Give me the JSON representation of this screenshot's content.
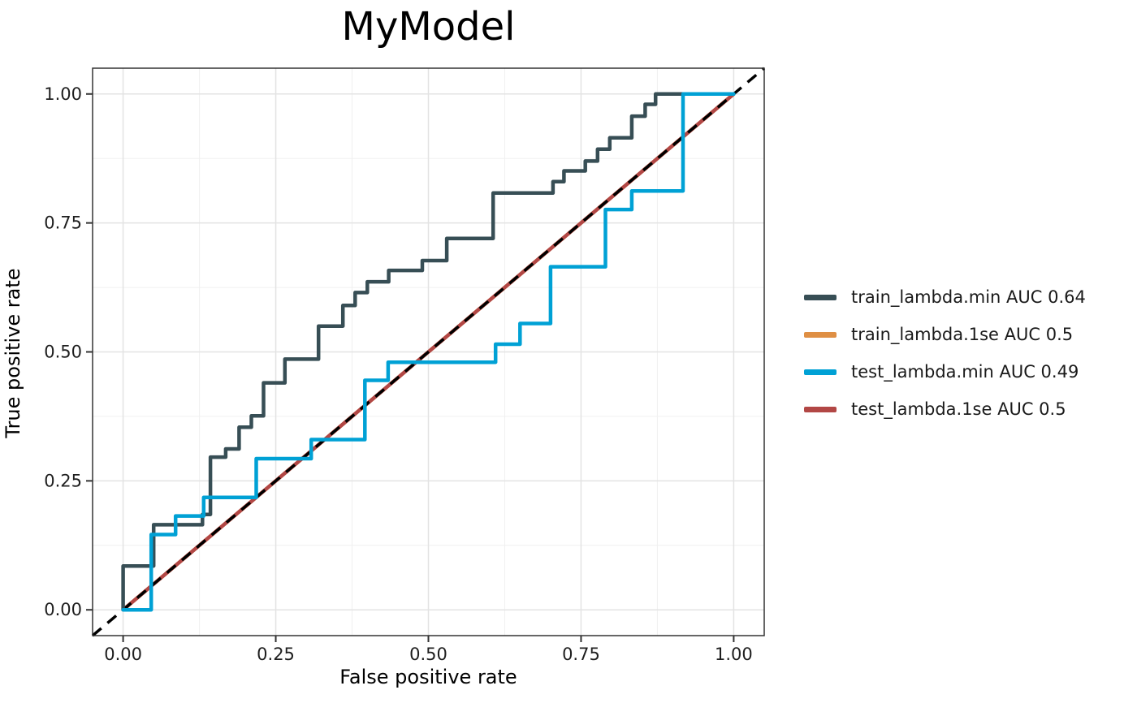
{
  "chart_data": {
    "type": "line",
    "subtype": "roc-step-curves",
    "title": "MyModel",
    "xlabel": "False positive rate",
    "ylabel": "True positive rate",
    "xlim": [
      -0.05,
      1.05
    ],
    "ylim": [
      -0.05,
      1.05
    ],
    "grid": true,
    "legend_position": "right",
    "x_ticks": {
      "values": [
        0,
        0.25,
        0.5,
        0.75,
        1
      ],
      "labels": [
        "0.00",
        "0.25",
        "0.50",
        "0.75",
        "1.00"
      ]
    },
    "y_ticks": {
      "values": [
        0,
        0.25,
        0.5,
        0.75,
        1
      ],
      "labels": [
        "0.00",
        "0.25",
        "0.50",
        "0.75",
        "1.00"
      ]
    },
    "minor_ticks": [
      0.125,
      0.375,
      0.625,
      0.875
    ],
    "reference_line": {
      "meaning": "chance diagonal",
      "style": "dashed",
      "color": "#000000",
      "from": [
        -0.05,
        -0.05
      ],
      "to": [
        1.05,
        1.05
      ]
    },
    "series": [
      {
        "name": "train_lambda.min AUC 0.64",
        "auc": 0.64,
        "color": "#374E55",
        "points": [
          [
            0.0,
            0.0
          ],
          [
            0.0,
            0.085
          ],
          [
            0.05,
            0.085
          ],
          [
            0.05,
            0.165
          ],
          [
            0.13,
            0.165
          ],
          [
            0.13,
            0.185
          ],
          [
            0.143,
            0.185
          ],
          [
            0.143,
            0.296
          ],
          [
            0.168,
            0.296
          ],
          [
            0.168,
            0.312
          ],
          [
            0.19,
            0.312
          ],
          [
            0.19,
            0.354
          ],
          [
            0.21,
            0.354
          ],
          [
            0.21,
            0.376
          ],
          [
            0.23,
            0.376
          ],
          [
            0.23,
            0.44
          ],
          [
            0.265,
            0.44
          ],
          [
            0.265,
            0.486
          ],
          [
            0.32,
            0.486
          ],
          [
            0.32,
            0.55
          ],
          [
            0.36,
            0.55
          ],
          [
            0.36,
            0.59
          ],
          [
            0.38,
            0.59
          ],
          [
            0.38,
            0.615
          ],
          [
            0.4,
            0.615
          ],
          [
            0.4,
            0.636
          ],
          [
            0.435,
            0.636
          ],
          [
            0.435,
            0.658
          ],
          [
            0.49,
            0.658
          ],
          [
            0.49,
            0.677
          ],
          [
            0.53,
            0.677
          ],
          [
            0.53,
            0.72
          ],
          [
            0.606,
            0.72
          ],
          [
            0.606,
            0.808
          ],
          [
            0.704,
            0.808
          ],
          [
            0.704,
            0.83
          ],
          [
            0.722,
            0.83
          ],
          [
            0.722,
            0.851
          ],
          [
            0.757,
            0.851
          ],
          [
            0.757,
            0.87
          ],
          [
            0.777,
            0.87
          ],
          [
            0.777,
            0.893
          ],
          [
            0.797,
            0.893
          ],
          [
            0.797,
            0.915
          ],
          [
            0.833,
            0.915
          ],
          [
            0.833,
            0.957
          ],
          [
            0.855,
            0.957
          ],
          [
            0.855,
            0.98
          ],
          [
            0.872,
            0.98
          ],
          [
            0.872,
            1.0
          ],
          [
            1.0,
            1.0
          ]
        ]
      },
      {
        "name": "train_lambda.1se AUC 0.5",
        "auc": 0.5,
        "color": "#DF8F44",
        "points": [
          [
            0,
            0
          ],
          [
            1,
            1
          ]
        ]
      },
      {
        "name": "test_lambda.min AUC 0.49",
        "auc": 0.49,
        "color": "#00A1D5",
        "points": [
          [
            0.0,
            0.0
          ],
          [
            0.046,
            0.0
          ],
          [
            0.046,
            0.146
          ],
          [
            0.086,
            0.146
          ],
          [
            0.086,
            0.182
          ],
          [
            0.132,
            0.182
          ],
          [
            0.132,
            0.218
          ],
          [
            0.218,
            0.218
          ],
          [
            0.218,
            0.293
          ],
          [
            0.308,
            0.293
          ],
          [
            0.308,
            0.33
          ],
          [
            0.396,
            0.33
          ],
          [
            0.396,
            0.445
          ],
          [
            0.434,
            0.445
          ],
          [
            0.434,
            0.48
          ],
          [
            0.61,
            0.48
          ],
          [
            0.61,
            0.515
          ],
          [
            0.65,
            0.515
          ],
          [
            0.65,
            0.555
          ],
          [
            0.7,
            0.555
          ],
          [
            0.7,
            0.665
          ],
          [
            0.79,
            0.665
          ],
          [
            0.79,
            0.776
          ],
          [
            0.833,
            0.776
          ],
          [
            0.833,
            0.812
          ],
          [
            0.917,
            0.812
          ],
          [
            0.917,
            1.0
          ],
          [
            1.0,
            1.0
          ]
        ]
      },
      {
        "name": "test_lambda.1se AUC 0.5",
        "auc": 0.5,
        "color": "#B24745",
        "points": [
          [
            0,
            0
          ],
          [
            1,
            1
          ]
        ]
      }
    ],
    "style_colors": {
      "panel_background": "#ffffff",
      "panel_border": "#333333",
      "major_gridline": "#e3e3e3",
      "minor_gridline": "#f0f0f0",
      "tick_mark": "#333333",
      "tick_label": "#1f1f1f"
    }
  }
}
